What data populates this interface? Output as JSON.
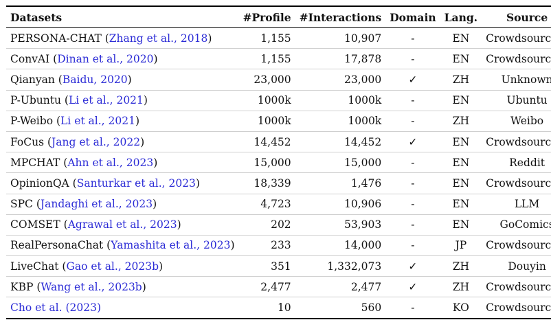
{
  "table": {
    "headers": [
      "Datasets",
      "#Profile",
      "#Interactions",
      "Domain",
      "Lang.",
      "Source"
    ],
    "rows": [
      {
        "name": "PERSONA-CHAT",
        "cite": "Zhang et al., 2018",
        "profile": "1,155",
        "interactions": "10,907",
        "domain": "-",
        "lang": "EN",
        "source": "Crowdsourcing"
      },
      {
        "name": "ConvAI",
        "cite": "Dinan et al., 2020",
        "profile": "1,155",
        "interactions": "17,878",
        "domain": "-",
        "lang": "EN",
        "source": "Crowdsourcing"
      },
      {
        "name": "Qianyan",
        "cite": "Baidu, 2020",
        "profile": "23,000",
        "interactions": "23,000",
        "domain": "✓",
        "lang": "ZH",
        "source": "Unknown"
      },
      {
        "name": "P-Ubuntu",
        "cite": "Li et al., 2021",
        "profile": "1000k",
        "interactions": "1000k",
        "domain": "-",
        "lang": "EN",
        "source": "Ubuntu"
      },
      {
        "name": "P-Weibo",
        "cite": "Li et al., 2021",
        "profile": "1000k",
        "interactions": "1000k",
        "domain": "-",
        "lang": "ZH",
        "source": "Weibo"
      },
      {
        "name": "FoCus",
        "cite": "Jang et al., 2022",
        "profile": "14,452",
        "interactions": "14,452",
        "domain": "✓",
        "lang": "EN",
        "source": "Crowdsourcing"
      },
      {
        "name": "MPCHAT",
        "cite": "Ahn et al., 2023",
        "profile": "15,000",
        "interactions": "15,000",
        "domain": "-",
        "lang": "EN",
        "source": "Reddit"
      },
      {
        "name": "OpinionQA",
        "cite": "Santurkar et al., 2023",
        "profile": "18,339",
        "interactions": "1,476",
        "domain": "-",
        "lang": "EN",
        "source": "Crowdsourcing"
      },
      {
        "name": "SPC",
        "cite": "Jandaghi et al., 2023",
        "profile": "4,723",
        "interactions": "10,906",
        "domain": "-",
        "lang": "EN",
        "source": "LLM"
      },
      {
        "name": "COMSET",
        "cite": "Agrawal et al., 2023",
        "profile": "202",
        "interactions": "53,903",
        "domain": "-",
        "lang": "EN",
        "source": "GoComics"
      },
      {
        "name": "RealPersonaChat",
        "cite": "Yamashita et al., 2023",
        "profile": "233",
        "interactions": "14,000",
        "domain": "-",
        "lang": "JP",
        "source": "Crowdsourcing"
      },
      {
        "name": "LiveChat",
        "cite": "Gao et al., 2023b",
        "profile": "351",
        "interactions": "1,332,073",
        "domain": "✓",
        "lang": "ZH",
        "source": "Douyin"
      },
      {
        "name": "KBP",
        "cite": "Wang et al., 2023b",
        "profile": "2,477",
        "interactions": "2,477",
        "domain": "✓",
        "lang": "ZH",
        "source": "Crowdsourcing"
      },
      {
        "name": "",
        "cite_plain": "Cho et al. (2023)",
        "profile": "10",
        "interactions": "560",
        "domain": "-",
        "lang": "KO",
        "source": "Crowdsourcing"
      }
    ]
  }
}
